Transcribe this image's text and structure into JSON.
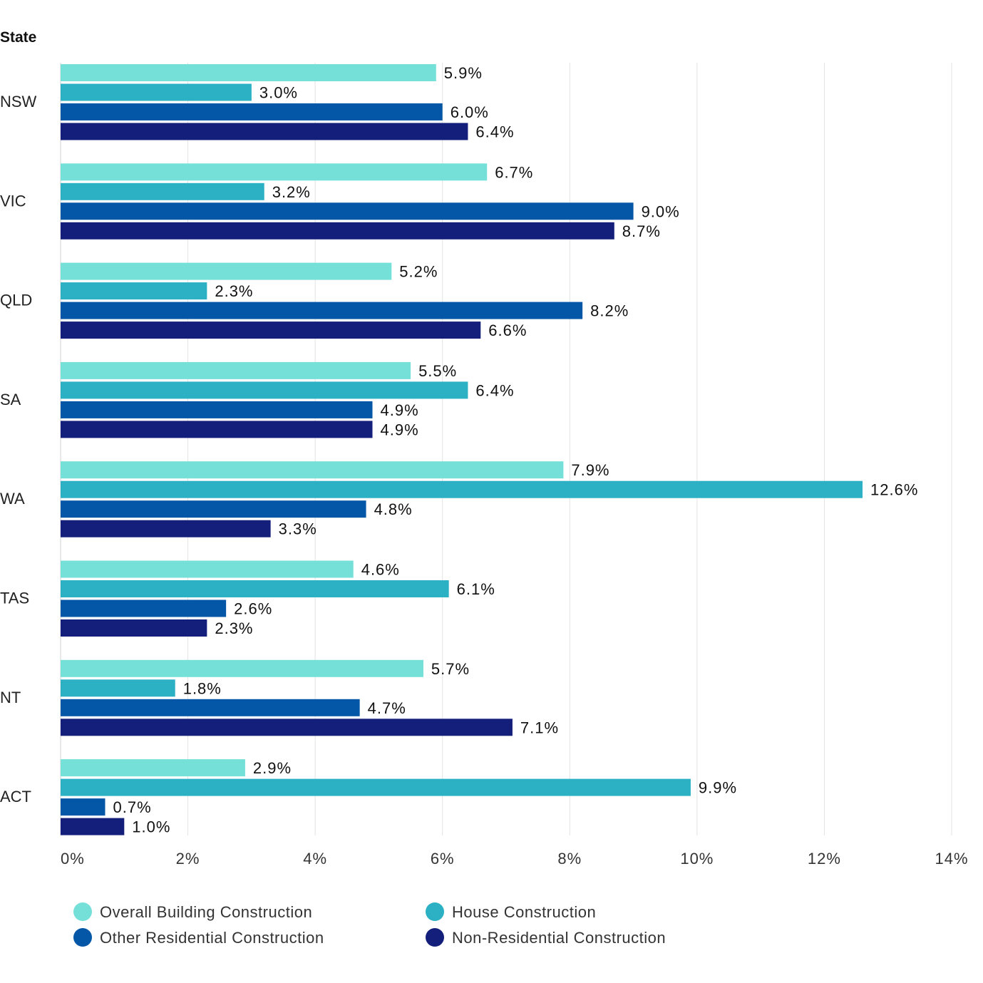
{
  "chart_data": {
    "type": "bar",
    "orientation": "horizontal",
    "ylabel": "State",
    "categories": [
      "NSW",
      "VIC",
      "QLD",
      "SA",
      "WA",
      "TAS",
      "NT",
      "ACT"
    ],
    "xlim": [
      0,
      14
    ],
    "xticks": [
      0,
      2,
      4,
      6,
      8,
      10,
      12,
      14
    ],
    "xtick_labels": [
      "0%",
      "2%",
      "4%",
      "6%",
      "8%",
      "10%",
      "12%",
      "14%"
    ],
    "grid": true,
    "legend_position": "bottom",
    "series": [
      {
        "name": "Overall Building Construction",
        "color": "#74e0d8",
        "values": [
          5.9,
          6.7,
          5.2,
          5.5,
          7.9,
          4.6,
          5.7,
          2.9
        ],
        "labels": [
          "5.9%",
          "6.7%",
          "5.2%",
          "5.5%",
          "7.9%",
          "4.6%",
          "5.7%",
          "2.9%"
        ]
      },
      {
        "name": "House Construction",
        "color": "#2bb0c4",
        "values": [
          3.0,
          3.2,
          2.3,
          6.4,
          12.6,
          6.1,
          1.8,
          9.9
        ],
        "labels": [
          "3.0%",
          "3.2%",
          "2.3%",
          "6.4%",
          "12.6%",
          "6.1%",
          "1.8%",
          "9.9%"
        ]
      },
      {
        "name": "Other Residential Construction",
        "color": "#0456a6",
        "values": [
          6.0,
          9.0,
          8.2,
          4.9,
          4.8,
          2.6,
          4.7,
          0.7
        ],
        "labels": [
          "6.0%",
          "9.0%",
          "8.2%",
          "4.9%",
          "4.8%",
          "2.6%",
          "4.7%",
          "0.7%"
        ]
      },
      {
        "name": "Non-Residential Construction",
        "color": "#131f7a",
        "values": [
          6.4,
          8.7,
          6.6,
          4.9,
          3.3,
          2.3,
          7.1,
          1.0
        ],
        "labels": [
          "6.4%",
          "8.7%",
          "6.6%",
          "4.9%",
          "3.3%",
          "2.3%",
          "7.1%",
          "1.0%"
        ]
      }
    ]
  }
}
